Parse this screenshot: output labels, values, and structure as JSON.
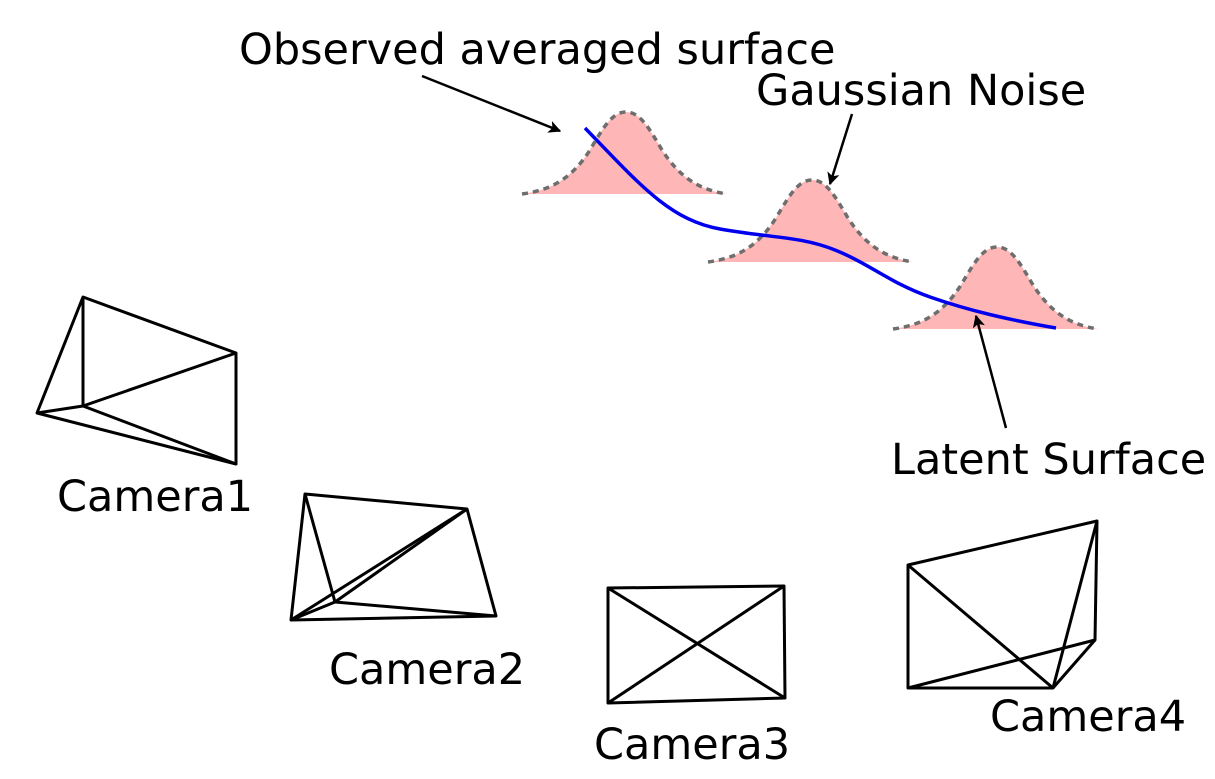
{
  "labels": {
    "observed": "Observed averaged surface",
    "noise": "Gaussian Noise",
    "latent": "Latent Surface",
    "camera1": "Camera1",
    "camera2": "Camera2",
    "camera3": "Camera3",
    "camera4": "Camera4"
  },
  "colors": {
    "gaussian_fill": "#ffb6b6",
    "gaussian_outline": "#6e6e6e",
    "latent_surface": "#0000ee",
    "lines": "#000000"
  }
}
